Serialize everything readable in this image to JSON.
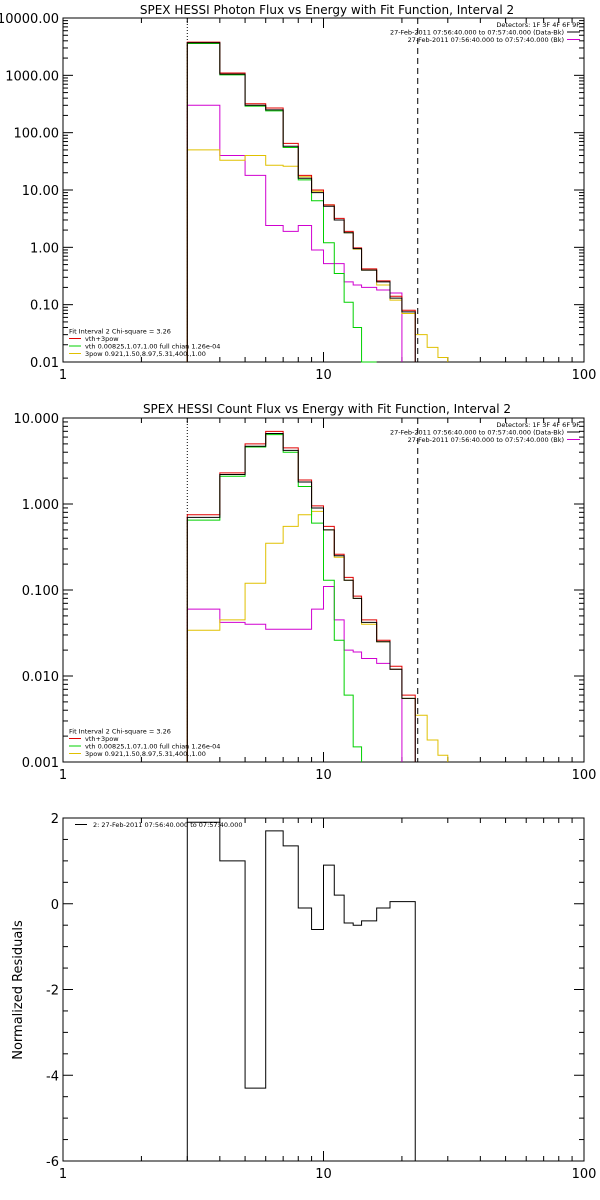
{
  "colors": {
    "data": "#000000",
    "total": "#e00000",
    "thermal": "#00d000",
    "powerlaw": "#e0c000",
    "background": "#d000d0"
  },
  "chart_data": [
    {
      "id": "photon",
      "type": "line",
      "title": "SPEX HESSI Photon Flux vs Energy with Fit Function, Interval 2",
      "xscale": "log",
      "yscale": "log",
      "xlim": [
        1,
        100
      ],
      "ylim": [
        0.01,
        10000
      ],
      "xticks": [
        "1",
        "10",
        "100"
      ],
      "yticks": [
        "0.01",
        "0.10",
        "1.00",
        "10.00",
        "100.00",
        "1000.00",
        "10000.00"
      ],
      "vlines": {
        "dotted": 3,
        "dashed": 23
      },
      "legend_top": {
        "position": "top-right",
        "lines": [
          {
            "text": "Detectors: 1F 3F 4F 6F 9F",
            "color": ""
          },
          {
            "text": "27-Feb-2011 07:56:40.000 to 07:57:40.000 (Data-Bk)",
            "color": "data"
          },
          {
            "text": "27-Feb-2011 07:56:40.000 to 07:57:40.000 (Bk)",
            "color": "background"
          }
        ]
      },
      "legend_bottom": {
        "position": "bottom-left",
        "lines": [
          {
            "text": "Fit Interval 2   Chi-square = 3.26",
            "color": ""
          },
          {
            "text": "vth+3pow",
            "color": "total"
          },
          {
            "text": "vth 0.00825,1.07,1.00  full chian 1.26e-04",
            "color": "thermal"
          },
          {
            "text": "3pow 0.921,1.50,8.97,5.31,400.,1.00",
            "color": "powerlaw"
          }
        ]
      },
      "edges": [
        3,
        4,
        5,
        6,
        7,
        8,
        9,
        10,
        11,
        12,
        13,
        14,
        16,
        18,
        20,
        22.5,
        25,
        27.5,
        30
      ],
      "series": [
        {
          "color": "total",
          "values": [
            3800,
            1100,
            320,
            270,
            65,
            18,
            10,
            5.5,
            3.2,
            1.9,
            0.98,
            0.42,
            0.26,
            0.14,
            0.08,
            null,
            null,
            null
          ]
        },
        {
          "color": "data",
          "values": [
            3700,
            1050,
            300,
            250,
            58,
            16,
            9,
            5.2,
            3.0,
            1.8,
            0.95,
            0.4,
            0.25,
            0.13,
            0.075,
            null,
            null,
            null
          ]
        },
        {
          "color": "thermal",
          "values": [
            3600,
            1020,
            290,
            240,
            55,
            15,
            6.5,
            1.2,
            0.35,
            0.11,
            0.04,
            0.01,
            null,
            null,
            null,
            null,
            null,
            null
          ]
        },
        {
          "color": "powerlaw",
          "values": [
            50,
            33,
            40,
            27,
            26,
            17,
            9.5,
            5.5,
            3.0,
            1.8,
            0.93,
            0.4,
            0.22,
            0.12,
            0.07,
            0.03,
            0.018,
            0.012
          ]
        },
        {
          "color": "background",
          "values": [
            300,
            40,
            18,
            2.4,
            1.9,
            2.4,
            0.9,
            0.52,
            0.52,
            0.25,
            0.22,
            0.2,
            0.18,
            0.16,
            null,
            null,
            null,
            null
          ]
        }
      ]
    },
    {
      "id": "count",
      "type": "line",
      "title": "SPEX HESSI Count Flux vs Energy with Fit Function, Interval 2",
      "xscale": "log",
      "yscale": "log",
      "xlim": [
        1,
        100
      ],
      "ylim": [
        0.001,
        10
      ],
      "xticks": [
        "1",
        "10",
        "100"
      ],
      "yticks": [
        "0.001",
        "0.010",
        "0.100",
        "1.000",
        "10.000"
      ],
      "vlines": {
        "dotted": 3,
        "dashed": 23
      },
      "legend_top": {
        "position": "top-right",
        "lines": [
          {
            "text": "Detectors: 1F 3F 4F 6F 9F",
            "color": ""
          },
          {
            "text": "27-Feb-2011 07:56:40.000 to 07:57:40.000 (Data-Bk)",
            "color": "data"
          },
          {
            "text": "27-Feb-2011 07:56:40.000 to 07:57:40.000 (Bk)",
            "color": "background"
          }
        ]
      },
      "legend_bottom": {
        "position": "bottom-left",
        "lines": [
          {
            "text": "Fit Interval 2   Chi-square = 3.26",
            "color": ""
          },
          {
            "text": "vth+3pow",
            "color": "total"
          },
          {
            "text": "vth 0.00825,1.07,1.00  full chian 1.26e-04",
            "color": "thermal"
          },
          {
            "text": "3pow 0.921,1.50,8.97,5.31,400.,1.00",
            "color": "powerlaw"
          }
        ]
      },
      "edges": [
        3,
        4,
        5,
        6,
        7,
        8,
        9,
        10,
        11,
        12,
        13,
        14,
        16,
        18,
        20,
        22.5,
        25,
        27.5,
        30
      ],
      "series": [
        {
          "color": "total",
          "values": [
            0.75,
            2.3,
            5.0,
            7.0,
            4.5,
            1.9,
            0.95,
            0.55,
            0.26,
            0.14,
            0.085,
            0.045,
            0.026,
            0.013,
            0.006,
            null,
            null,
            null
          ]
        },
        {
          "color": "data",
          "values": [
            0.7,
            2.2,
            4.7,
            6.6,
            4.2,
            1.8,
            0.9,
            0.5,
            0.25,
            0.13,
            0.08,
            0.042,
            0.025,
            0.012,
            0.0055,
            null,
            null,
            null
          ]
        },
        {
          "color": "thermal",
          "values": [
            0.65,
            2.1,
            4.6,
            6.4,
            4.0,
            1.6,
            0.6,
            0.13,
            0.026,
            0.006,
            0.0015,
            null,
            null,
            null,
            null,
            null,
            null,
            null
          ]
        },
        {
          "color": "powerlaw",
          "values": [
            0.034,
            0.045,
            0.12,
            0.35,
            0.55,
            0.75,
            0.82,
            0.5,
            0.24,
            0.13,
            0.08,
            0.04,
            0.025,
            0.012,
            0.0055,
            0.0035,
            0.0018,
            0.0012
          ]
        },
        {
          "color": "background",
          "values": [
            0.06,
            0.042,
            0.04,
            0.035,
            0.035,
            0.035,
            0.06,
            0.11,
            0.045,
            0.02,
            0.019,
            0.016,
            0.014,
            0.012,
            null,
            null,
            null,
            null
          ]
        }
      ]
    },
    {
      "id": "residuals",
      "type": "line",
      "title": "",
      "xscale": "log",
      "xlim": [
        1,
        100
      ],
      "ylim": [
        -6,
        2
      ],
      "ylabel": "Normalized Residuals",
      "xticks": [
        "1",
        "10",
        "100"
      ],
      "yticks": [
        "-6",
        "-4",
        "-2",
        "0",
        "2"
      ],
      "legend_top": {
        "position": "top-left",
        "lines": [
          {
            "text": "2: 27-Feb-2011 07:56:40.000 to 07:57:40.000",
            "color": "data"
          }
        ]
      },
      "edges": [
        3,
        4,
        5,
        6,
        7,
        8,
        9,
        10,
        11,
        12,
        13,
        14,
        16,
        18,
        20,
        22.5
      ],
      "series": [
        {
          "color": "data",
          "values": [
            1.9,
            1.0,
            -4.3,
            1.7,
            1.35,
            -0.1,
            -0.6,
            0.9,
            0.2,
            -0.45,
            -0.5,
            -0.4,
            -0.1,
            0.05,
            0.05
          ]
        }
      ]
    }
  ]
}
